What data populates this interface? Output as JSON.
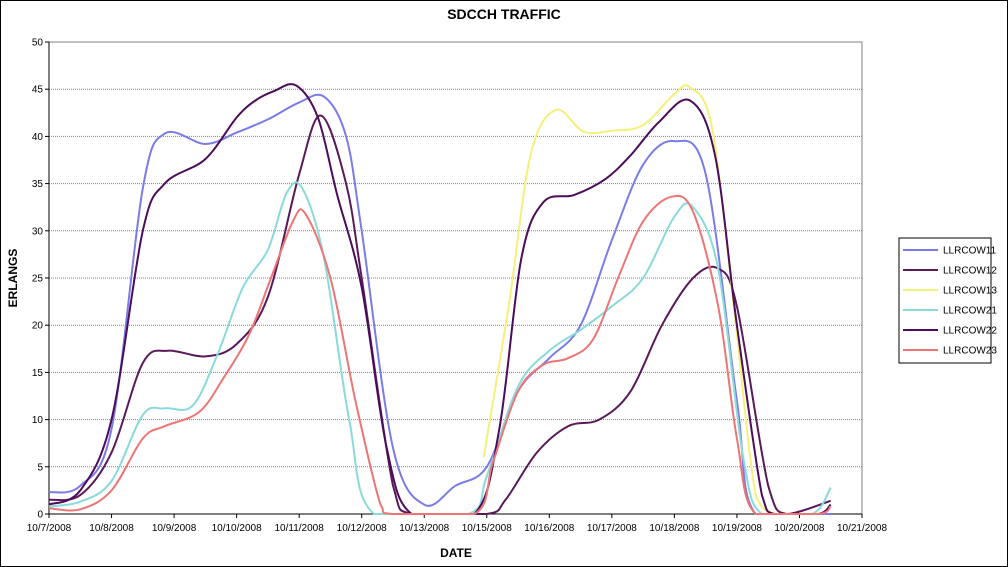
{
  "chart_data": {
    "type": "line",
    "title": "SDCCH TRAFFIC",
    "xlabel": "DATE",
    "ylabel": "ERLANGS",
    "ylim": [
      0,
      50
    ],
    "yticks": [
      0,
      5,
      10,
      15,
      20,
      25,
      30,
      35,
      40,
      45,
      50
    ],
    "grid": "horizontal",
    "legend_position": "right",
    "x_tick_labels": [
      "10/7/2008",
      "10/8/2008",
      "10/9/2008",
      "10/10/2008",
      "10/11/2008",
      "10/12/2008",
      "10/13/2008",
      "10/15/2008",
      "10/16/2008",
      "10/17/2008",
      "10/18/2008",
      "10/19/2008",
      "10/20/2008",
      "10/21/2008"
    ],
    "series": [
      {
        "name": "LLRCOW11",
        "color": "#7B7BE6",
        "points": [
          [
            0,
            2.3
          ],
          [
            0.5,
            3.0
          ],
          [
            1,
            9.0
          ],
          [
            1.5,
            34.5
          ],
          [
            1.85,
            40.3
          ],
          [
            2.5,
            39.2
          ],
          [
            3,
            40.4
          ],
          [
            3.5,
            41.8
          ],
          [
            4,
            43.6
          ],
          [
            4.4,
            44.2
          ],
          [
            4.75,
            40.0
          ],
          [
            5,
            30.0
          ],
          [
            5.5,
            7.0
          ],
          [
            6,
            1.0
          ],
          [
            6.5,
            3.0
          ],
          [
            7,
            5.0
          ],
          [
            7.5,
            13.0
          ],
          [
            8,
            16.5
          ],
          [
            8.5,
            20.0
          ],
          [
            9,
            29.0
          ],
          [
            9.5,
            37.0
          ],
          [
            10,
            39.5
          ],
          [
            10.5,
            36.0
          ],
          [
            11,
            12.0
          ],
          [
            11.3,
            0
          ],
          [
            12.5,
            0
          ]
        ]
      },
      {
        "name": "LLRCOW12",
        "color": "#5A1A5A",
        "points": [
          [
            0,
            1.5
          ],
          [
            0.5,
            2.0
          ],
          [
            1,
            6.5
          ],
          [
            1.5,
            16.0
          ],
          [
            1.9,
            17.3
          ],
          [
            2.5,
            16.7
          ],
          [
            3,
            18.0
          ],
          [
            3.5,
            23.0
          ],
          [
            4,
            36.0
          ],
          [
            4.35,
            42.2
          ],
          [
            4.75,
            35.0
          ],
          [
            5,
            25.0
          ],
          [
            5.5,
            3.0
          ],
          [
            5.8,
            0
          ],
          [
            7,
            0
          ],
          [
            7.3,
            1.5
          ],
          [
            7.8,
            6.5
          ],
          [
            8.3,
            9.3
          ],
          [
            8.8,
            10.0
          ],
          [
            9.3,
            13.0
          ],
          [
            9.8,
            20.0
          ],
          [
            10.3,
            25.0
          ],
          [
            10.7,
            26.0
          ],
          [
            11,
            22.0
          ],
          [
            11.5,
            3.0
          ],
          [
            11.8,
            0
          ],
          [
            12.5,
            1.4
          ]
        ]
      },
      {
        "name": "LLRCOW13",
        "color": "#F5F07A",
        "points": [
          [
            6.95,
            6.0
          ],
          [
            7.35,
            22.0
          ],
          [
            7.7,
            38.0
          ],
          [
            8.1,
            42.8
          ],
          [
            8.55,
            40.5
          ],
          [
            9.0,
            40.6
          ],
          [
            9.5,
            41.2
          ],
          [
            10.0,
            44.5
          ],
          [
            10.25,
            45.2
          ],
          [
            10.6,
            41.0
          ],
          [
            10.95,
            22.0
          ],
          [
            11.3,
            2.0
          ],
          [
            11.6,
            0
          ]
        ]
      },
      {
        "name": "LLRCOW21",
        "color": "#8ADADA",
        "points": [
          [
            0,
            0.8
          ],
          [
            0.5,
            1.3
          ],
          [
            1,
            3.5
          ],
          [
            1.5,
            10.5
          ],
          [
            1.85,
            11.2
          ],
          [
            2.3,
            11.5
          ],
          [
            2.7,
            17.0
          ],
          [
            3.1,
            24.0
          ],
          [
            3.5,
            28.0
          ],
          [
            3.8,
            34.0
          ],
          [
            4.05,
            34.5
          ],
          [
            4.4,
            27.0
          ],
          [
            4.8,
            10.0
          ],
          [
            5.2,
            0
          ],
          [
            6.7,
            0
          ],
          [
            7.0,
            4.0
          ],
          [
            7.5,
            13.5
          ],
          [
            8.0,
            17.3
          ],
          [
            8.5,
            19.5
          ],
          [
            9.0,
            22.0
          ],
          [
            9.5,
            25.0
          ],
          [
            10.0,
            31.5
          ],
          [
            10.3,
            32.5
          ],
          [
            10.7,
            26.0
          ],
          [
            11.1,
            6.0
          ],
          [
            11.4,
            0
          ],
          [
            12.2,
            0
          ],
          [
            12.5,
            2.8
          ]
        ]
      },
      {
        "name": "LLRCOW22",
        "color": "#4B0C5C",
        "points": [
          [
            0,
            1.0
          ],
          [
            0.5,
            2.5
          ],
          [
            1,
            10.0
          ],
          [
            1.5,
            30.0
          ],
          [
            1.85,
            35.0
          ],
          [
            2.5,
            37.6
          ],
          [
            3,
            42.0
          ],
          [
            3.3,
            43.8
          ],
          [
            3.6,
            44.8
          ],
          [
            3.95,
            45.4
          ],
          [
            4.3,
            42.0
          ],
          [
            4.6,
            34.0
          ],
          [
            5,
            24.0
          ],
          [
            5.4,
            7.0
          ],
          [
            5.8,
            0
          ],
          [
            6.8,
            0
          ],
          [
            7.2,
            9.0
          ],
          [
            7.55,
            27.0
          ],
          [
            7.9,
            33.0
          ],
          [
            8.4,
            33.8
          ],
          [
            8.9,
            35.5
          ],
          [
            9.3,
            38.0
          ],
          [
            9.75,
            41.5
          ],
          [
            10.25,
            43.8
          ],
          [
            10.65,
            38.0
          ],
          [
            11.0,
            20.0
          ],
          [
            11.4,
            2.0
          ],
          [
            11.6,
            0
          ],
          [
            12.3,
            0
          ],
          [
            12.5,
            1.0
          ]
        ]
      },
      {
        "name": "LLRCOW23",
        "color": "#EE7575",
        "points": [
          [
            0,
            0.6
          ],
          [
            0.5,
            0.5
          ],
          [
            1,
            2.5
          ],
          [
            1.5,
            8.0
          ],
          [
            1.85,
            9.3
          ],
          [
            2.4,
            10.8
          ],
          [
            2.8,
            14.5
          ],
          [
            3.2,
            19.0
          ],
          [
            3.55,
            25.0
          ],
          [
            3.9,
            31.0
          ],
          [
            4.1,
            31.8
          ],
          [
            4.5,
            25.0
          ],
          [
            4.9,
            12.0
          ],
          [
            5.3,
            1.0
          ],
          [
            5.5,
            0
          ],
          [
            6.8,
            0
          ],
          [
            7.1,
            5.5
          ],
          [
            7.5,
            13.0
          ],
          [
            7.9,
            15.8
          ],
          [
            8.3,
            16.5
          ],
          [
            8.7,
            18.5
          ],
          [
            9.1,
            25.0
          ],
          [
            9.5,
            31.0
          ],
          [
            9.95,
            33.6
          ],
          [
            10.3,
            32.0
          ],
          [
            10.7,
            22.0
          ],
          [
            11.0,
            8.0
          ],
          [
            11.3,
            0
          ],
          [
            12.3,
            0
          ],
          [
            12.5,
            0.8
          ]
        ]
      }
    ]
  }
}
